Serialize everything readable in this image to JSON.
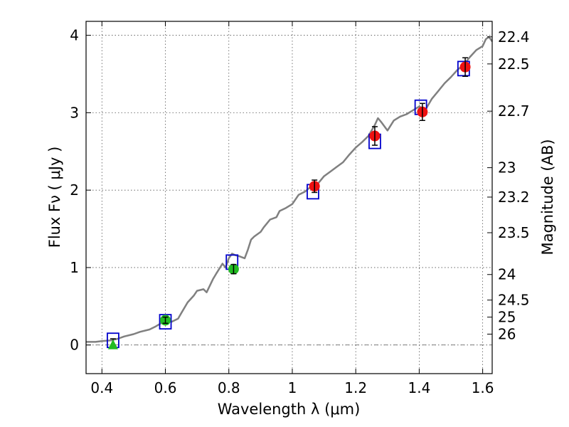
{
  "chart_data": {
    "type": "scatter",
    "xlabel": "Wavelength λ (μm)",
    "ylabel": "Flux Fν ( μJy )",
    "ylabel_right": "Magnitude (AB)",
    "xlim": [
      0.35,
      1.63
    ],
    "ylim": [
      -0.37,
      4.18
    ],
    "x_ticks": [
      0.4,
      0.6,
      0.8,
      1.0,
      1.2,
      1.4,
      1.6
    ],
    "x_tick_labels": [
      "0.4",
      "0.6",
      "0.8",
      "1",
      "1.2",
      "1.4",
      "1.6"
    ],
    "y_ticks": [
      0,
      1,
      2,
      3,
      4
    ],
    "y_tick_labels": [
      "0",
      "1",
      "2",
      "3",
      "4"
    ],
    "right_ticks": [
      {
        "label": "22.4",
        "flux": 3.98
      },
      {
        "label": "22.5",
        "flux": 3.63
      },
      {
        "label": "22.7",
        "flux": 3.02
      },
      {
        "label": "23",
        "flux": 2.29
      },
      {
        "label": "23.2",
        "flux": 1.91
      },
      {
        "label": "23.5",
        "flux": 1.45
      },
      {
        "label": "24",
        "flux": 0.91
      },
      {
        "label": "24.5",
        "flux": 0.58
      },
      {
        "label": "25",
        "flux": 0.36
      },
      {
        "label": "26",
        "flux": 0.14
      }
    ],
    "grid": true,
    "zero_line": true,
    "colors": {
      "spectrum": "#808080",
      "model_box": "#0000cc",
      "optical_point": "#22bb22",
      "nir_point": "#ee1111",
      "upper_limit": "#22bb22",
      "error_bar": "#000000"
    },
    "series": [
      {
        "name": "model spectrum",
        "type": "line",
        "x": [
          0.35,
          0.38,
          0.4,
          0.43,
          0.45,
          0.47,
          0.5,
          0.52,
          0.55,
          0.57,
          0.59,
          0.6,
          0.62,
          0.64,
          0.65,
          0.67,
          0.69,
          0.7,
          0.72,
          0.73,
          0.75,
          0.76,
          0.78,
          0.79,
          0.8,
          0.81,
          0.82,
          0.83,
          0.85,
          0.86,
          0.87,
          0.88,
          0.9,
          0.91,
          0.92,
          0.93,
          0.95,
          0.96,
          0.98,
          1.0,
          1.02,
          1.04,
          1.06,
          1.08,
          1.1,
          1.12,
          1.14,
          1.16,
          1.18,
          1.2,
          1.22,
          1.24,
          1.26,
          1.27,
          1.28,
          1.3,
          1.32,
          1.34,
          1.36,
          1.38,
          1.4,
          1.42,
          1.44,
          1.46,
          1.48,
          1.5,
          1.52,
          1.54,
          1.56,
          1.58,
          1.6,
          1.61,
          1.62,
          1.63
        ],
        "y": [
          0.04,
          0.04,
          0.05,
          0.06,
          0.08,
          0.11,
          0.14,
          0.17,
          0.2,
          0.24,
          0.29,
          0.32,
          0.3,
          0.34,
          0.41,
          0.55,
          0.64,
          0.7,
          0.72,
          0.68,
          0.85,
          0.92,
          1.05,
          1.0,
          1.12,
          1.18,
          1.16,
          1.15,
          1.12,
          1.23,
          1.36,
          1.4,
          1.46,
          1.52,
          1.57,
          1.62,
          1.65,
          1.73,
          1.77,
          1.82,
          1.94,
          1.98,
          2.05,
          2.08,
          2.18,
          2.24,
          2.3,
          2.36,
          2.46,
          2.55,
          2.62,
          2.7,
          2.84,
          2.93,
          2.88,
          2.77,
          2.9,
          2.95,
          2.98,
          3.03,
          3.08,
          3.04,
          3.18,
          3.28,
          3.38,
          3.46,
          3.55,
          3.62,
          3.72,
          3.81,
          3.86,
          3.95,
          3.98,
          3.92
        ]
      },
      {
        "name": "model photometry",
        "type": "marker",
        "marker": "open-square",
        "x": [
          0.435,
          0.6,
          0.81,
          1.065,
          1.26,
          1.405,
          1.54
        ],
        "y": [
          0.06,
          0.3,
          1.07,
          1.98,
          2.63,
          3.07,
          3.57
        ]
      },
      {
        "name": "optical detections",
        "type": "marker",
        "marker": "circle",
        "x": [
          0.6,
          0.815
        ],
        "y": [
          0.32,
          0.98
        ],
        "yerr": [
          0.04,
          0.06
        ]
      },
      {
        "name": "near-infrared detections",
        "type": "marker",
        "marker": "circle",
        "x": [
          1.07,
          1.26,
          1.41,
          1.545
        ],
        "y": [
          2.05,
          2.7,
          3.01,
          3.59
        ],
        "yerr": [
          0.08,
          0.12,
          0.11,
          0.12
        ]
      },
      {
        "name": "upper limit",
        "type": "marker",
        "marker": "triangle",
        "x": [
          0.435
        ],
        "y": [
          0.0
        ],
        "yerr": [
          0.04
        ]
      }
    ]
  }
}
